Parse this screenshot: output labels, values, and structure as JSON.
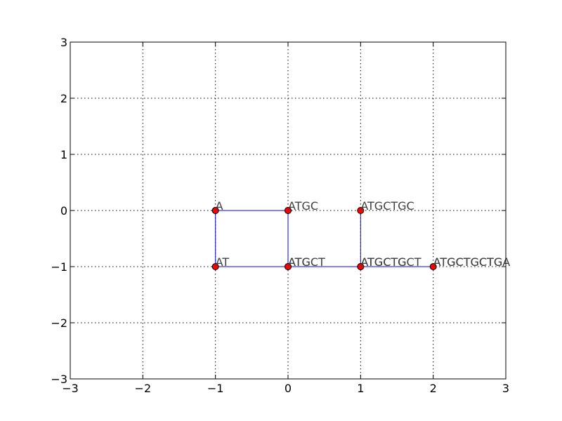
{
  "chart_data": {
    "type": "line",
    "title": "",
    "xlabel": "",
    "ylabel": "",
    "xlim": [
      -3,
      3
    ],
    "ylim": [
      -3,
      3
    ],
    "x_ticks": [
      -3,
      -2,
      -1,
      0,
      1,
      2,
      3
    ],
    "y_ticks": [
      -3,
      -2,
      -1,
      0,
      1,
      2,
      3
    ],
    "x_tick_labels": [
      "−3",
      "−2",
      "−1",
      "0",
      "1",
      "2",
      "3"
    ],
    "y_tick_labels": [
      "−3",
      "−2",
      "−1",
      "0",
      "1",
      "2",
      "3"
    ],
    "grid": true,
    "line_color": "#0000ff",
    "marker_color": "#ff0000",
    "marker_edge_color": "#000000",
    "path": [
      [
        -1,
        0
      ],
      [
        -1,
        -1
      ],
      [
        0,
        -1
      ],
      [
        0,
        0
      ],
      [
        -1,
        0
      ],
      [
        0,
        0
      ],
      [
        0,
        -1
      ],
      [
        1,
        -1
      ],
      [
        1,
        0
      ],
      [
        1,
        -1
      ],
      [
        2,
        -1
      ]
    ],
    "points": [
      {
        "x": -1,
        "y": 0,
        "label": "A"
      },
      {
        "x": -1,
        "y": -1,
        "label": "AT"
      },
      {
        "x": 0,
        "y": -1,
        "label": "ATG"
      },
      {
        "x": 0,
        "y": 0,
        "label": "ATGC"
      },
      {
        "x": 0,
        "y": -1,
        "label": "ATGCT"
      },
      {
        "x": 1,
        "y": -1,
        "label": "ATGCTG"
      },
      {
        "x": 1,
        "y": 0,
        "label": "ATGCTGC"
      },
      {
        "x": 1,
        "y": -1,
        "label": "ATGCTGCT"
      },
      {
        "x": 2,
        "y": -1,
        "label": "ATGCTGCTGA"
      },
      {
        "x": 2,
        "y": -1,
        "label": "ATGCTGCTG"
      }
    ]
  }
}
